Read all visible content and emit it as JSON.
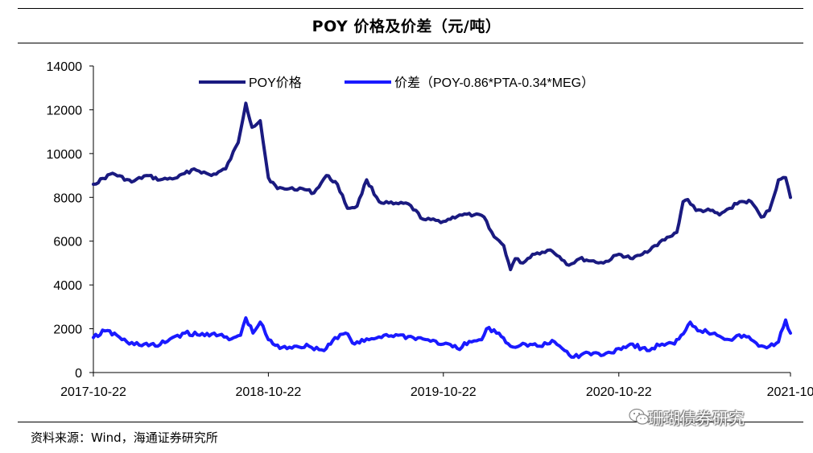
{
  "title": "POY 价格及价差（元/吨）",
  "source": "资料来源：Wind，海通证券研究所",
  "watermark": "珊瑚债券研究",
  "watermark_icon": "wechat-icon",
  "chart_data": {
    "type": "line",
    "x_ticks": [
      "2017-10-22",
      "2018-10-22",
      "2019-10-22",
      "2020-10-22",
      "2021-10"
    ],
    "ylim": [
      0,
      14000
    ],
    "y_ticks": [
      0,
      2000,
      4000,
      6000,
      8000,
      10000,
      12000,
      14000
    ],
    "legend_position": "top",
    "grid": false,
    "colors": [
      "#1a1a80",
      "#1a1aff"
    ],
    "series": [
      {
        "name": "POY价格",
        "points": [
          [
            "2017-10-22",
            8600
          ],
          [
            "2017-12-01",
            9100
          ],
          [
            "2018-01-10",
            8700
          ],
          [
            "2018-02-10",
            9000
          ],
          [
            "2018-03-10",
            8800
          ],
          [
            "2018-04-15",
            8900
          ],
          [
            "2018-05-20",
            9300
          ],
          [
            "2018-06-25",
            9000
          ],
          [
            "2018-07-25",
            9300
          ],
          [
            "2018-08-20",
            10500
          ],
          [
            "2018-09-05",
            12300
          ],
          [
            "2018-09-18",
            11200
          ],
          [
            "2018-10-05",
            11500
          ],
          [
            "2018-10-22",
            8900
          ],
          [
            "2018-11-10",
            8400
          ],
          [
            "2018-12-05",
            8400
          ],
          [
            "2019-01-01",
            8400
          ],
          [
            "2019-01-25",
            8200
          ],
          [
            "2019-02-20",
            9000
          ],
          [
            "2019-03-15",
            8600
          ],
          [
            "2019-04-05",
            7500
          ],
          [
            "2019-04-25",
            7600
          ],
          [
            "2019-05-15",
            8800
          ],
          [
            "2019-06-10",
            7800
          ],
          [
            "2019-07-10",
            7700
          ],
          [
            "2019-08-10",
            7700
          ],
          [
            "2019-09-10",
            7000
          ],
          [
            "2019-10-22",
            6900
          ],
          [
            "2019-11-25",
            7200
          ],
          [
            "2019-12-25",
            7200
          ],
          [
            "2020-01-15",
            7100
          ],
          [
            "2020-02-05",
            6200
          ],
          [
            "2020-02-25",
            5800
          ],
          [
            "2020-03-10",
            4700
          ],
          [
            "2020-03-20",
            5200
          ],
          [
            "2020-04-05",
            5000
          ],
          [
            "2020-04-25",
            5400
          ],
          [
            "2020-05-15",
            5500
          ],
          [
            "2020-06-01",
            5600
          ],
          [
            "2020-06-20",
            5300
          ],
          [
            "2020-07-10",
            4900
          ],
          [
            "2020-08-01",
            5200
          ],
          [
            "2020-08-25",
            5100
          ],
          [
            "2020-09-20",
            5000
          ],
          [
            "2020-10-22",
            5400
          ],
          [
            "2020-11-20",
            5200
          ],
          [
            "2020-12-10",
            5400
          ],
          [
            "2021-01-05",
            5800
          ],
          [
            "2021-02-05",
            6200
          ],
          [
            "2021-02-20",
            6400
          ],
          [
            "2021-03-05",
            7800
          ],
          [
            "2021-03-15",
            7900
          ],
          [
            "2021-04-01",
            7400
          ],
          [
            "2021-05-01",
            7400
          ],
          [
            "2021-05-20",
            7200
          ],
          [
            "2021-06-10",
            7500
          ],
          [
            "2021-07-01",
            7800
          ],
          [
            "2021-07-25",
            7800
          ],
          [
            "2021-08-15",
            7100
          ],
          [
            "2021-09-01",
            7400
          ],
          [
            "2021-09-20",
            8800
          ],
          [
            "2021-10-05",
            8900
          ],
          [
            "2021-10-15",
            8000
          ]
        ]
      },
      {
        "name": "价差（POY-0.86*PTA-0.34*MEG）",
        "points": [
          [
            "2017-10-22",
            1600
          ],
          [
            "2017-11-15",
            1900
          ],
          [
            "2017-12-10",
            1700
          ],
          [
            "2018-01-05",
            1300
          ],
          [
            "2018-02-05",
            1300
          ],
          [
            "2018-03-05",
            1200
          ],
          [
            "2018-04-05",
            1600
          ],
          [
            "2018-05-01",
            1800
          ],
          [
            "2018-06-01",
            1700
          ],
          [
            "2018-07-01",
            1800
          ],
          [
            "2018-08-01",
            1500
          ],
          [
            "2018-08-25",
            1700
          ],
          [
            "2018-09-05",
            2500
          ],
          [
            "2018-09-20",
            1800
          ],
          [
            "2018-10-05",
            2300
          ],
          [
            "2018-10-22",
            1500
          ],
          [
            "2018-11-15",
            1100
          ],
          [
            "2018-12-15",
            1200
          ],
          [
            "2019-01-15",
            1200
          ],
          [
            "2019-02-15",
            1000
          ],
          [
            "2019-03-10",
            1600
          ],
          [
            "2019-04-01",
            1800
          ],
          [
            "2019-04-20",
            1300
          ],
          [
            "2019-05-20",
            1500
          ],
          [
            "2019-06-20",
            1700
          ],
          [
            "2019-07-20",
            1700
          ],
          [
            "2019-08-20",
            1600
          ],
          [
            "2019-09-20",
            1500
          ],
          [
            "2019-10-22",
            1300
          ],
          [
            "2019-11-20",
            1100
          ],
          [
            "2019-12-20",
            1400
          ],
          [
            "2020-01-10",
            1500
          ],
          [
            "2020-01-20",
            2000
          ],
          [
            "2020-02-15",
            1800
          ],
          [
            "2020-03-10",
            1200
          ],
          [
            "2020-04-10",
            1300
          ],
          [
            "2020-05-10",
            1200
          ],
          [
            "2020-06-10",
            1400
          ],
          [
            "2020-07-01",
            1000
          ],
          [
            "2020-07-20",
            700
          ],
          [
            "2020-08-20",
            900
          ],
          [
            "2020-09-20",
            800
          ],
          [
            "2020-10-22",
            1100
          ],
          [
            "2020-11-20",
            1300
          ],
          [
            "2020-12-20",
            1000
          ],
          [
            "2021-01-20",
            1300
          ],
          [
            "2021-02-15",
            1300
          ],
          [
            "2021-03-01",
            1700
          ],
          [
            "2021-03-20",
            2300
          ],
          [
            "2021-04-10",
            1900
          ],
          [
            "2021-05-10",
            1800
          ],
          [
            "2021-06-10",
            1500
          ],
          [
            "2021-07-10",
            1700
          ],
          [
            "2021-07-25",
            1500
          ],
          [
            "2021-08-10",
            1200
          ],
          [
            "2021-09-01",
            1200
          ],
          [
            "2021-09-20",
            1400
          ],
          [
            "2021-10-05",
            2400
          ],
          [
            "2021-10-15",
            1800
          ]
        ]
      }
    ]
  }
}
